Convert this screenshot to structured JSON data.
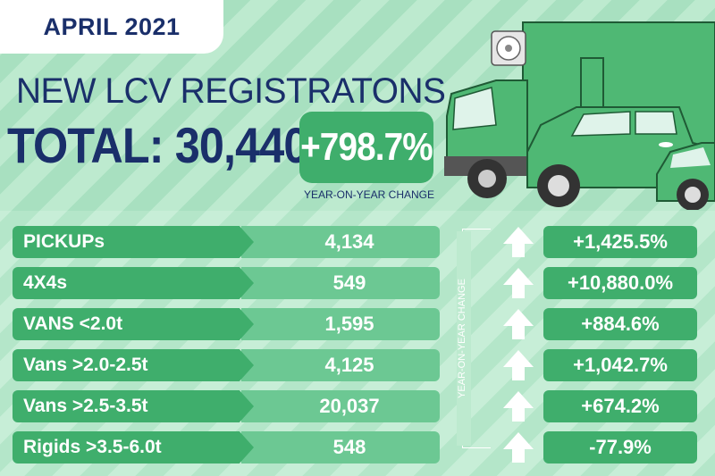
{
  "header": {
    "date": "APRIL 2021",
    "headline": "NEW LCV REGISTRATONS",
    "total": "TOTAL: 30,440",
    "change": "+798.7%",
    "change_caption": "YEAR-ON-YEAR CHANGE"
  },
  "table": {
    "side_caption": "YEAR-ON-YEAR CHANGE",
    "rows": [
      {
        "label": "PICKUPs",
        "value": "4,134",
        "change": "+1,425.5%"
      },
      {
        "label": "4X4s",
        "value": "549",
        "change": "+10,880.0%"
      },
      {
        "label": "VANS <2.0t",
        "value": "1,595",
        "change": "+884.6%"
      },
      {
        "label": "Vans >2.0-2.5t",
        "value": "4,125",
        "change": "+1,042.7%"
      },
      {
        "label": "Vans >2.5-3.5t",
        "value": "20,037",
        "change": "+674.2%"
      },
      {
        "label": "Rigids >3.5-6.0t",
        "value": "548",
        "change": "-77.9%"
      }
    ]
  },
  "colors": {
    "navy": "#1a2f6a",
    "green": "#3fae6c",
    "light_green": "#6cc893"
  }
}
